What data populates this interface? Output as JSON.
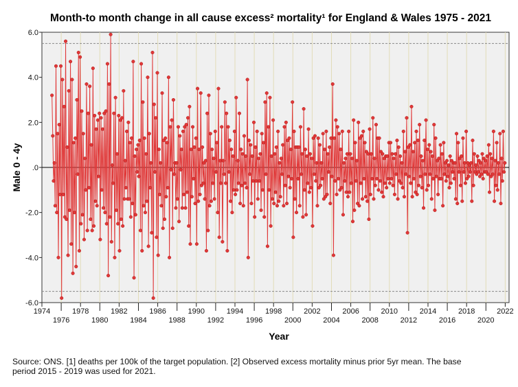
{
  "chart_data": {
    "type": "line",
    "title": "Month-to month change in all cause excess² mortality¹  for England & Wales 1975 - 2021",
    "xlabel": "Year",
    "ylabel": "Male 0 - 4y",
    "xlim": [
      1974,
      2022.4
    ],
    "ylim": [
      -6,
      6
    ],
    "x_ticks": [
      "1974",
      "1976",
      "1978",
      "1980",
      "1982",
      "1984",
      "1986",
      "1988",
      "1990",
      "1992",
      "1994",
      "1996",
      "1998",
      "2000",
      "2002",
      "2004",
      "2006",
      "2008",
      "2010",
      "2012",
      "2014",
      "2016",
      "2018",
      "2020",
      "2022"
    ],
    "y_ticks": [
      "6.0",
      "4.0",
      "2.0",
      ".0",
      "-2.0",
      "-4.0",
      "-6.0"
    ],
    "reference_lines": [
      5.5,
      -5.5,
      0
    ],
    "grid": "vertical",
    "series_color": "#e03838",
    "start_year": 1975,
    "monthly_values": [
      [
        3.2,
        1.4,
        -0.6,
        0.2,
        -1.7,
        4.5,
        -2.0,
        1.5,
        -4.0,
        1.9,
        -1.2,
        4.5
      ],
      [
        -5.8,
        3.9,
        -1.2,
        2.7,
        -2.2,
        5.6,
        -2.3,
        0.9,
        -3.9,
        3.4,
        -1.9,
        4.7
      ],
      [
        -3.4,
        3.9,
        -4.7,
        1.1,
        -2.0,
        1.3,
        -4.4,
        3.0,
        -0.3,
        5.1,
        -3.7,
        4.9
      ],
      [
        -2.5,
        2.5,
        -2.1,
        1.5,
        -3.2,
        0.4,
        -1.0,
        3.7,
        -2.8,
        2.4,
        -0.9,
        3.6
      ],
      [
        -2.3,
        1.0,
        -2.8,
        4.4,
        -2.6,
        2.3,
        -1.5,
        1.7,
        -1.7,
        2.1,
        -0.4,
        2.4
      ],
      [
        -3.2,
        2.2,
        -1.0,
        1.7,
        -1.8,
        2.4,
        -2.0,
        2.5,
        -2.5,
        4.6,
        -4.8,
        3.7
      ],
      [
        -2.2,
        5.9,
        -3.3,
        0.1,
        -0.7,
        2.4,
        -4.0,
        3.1,
        -1.9,
        0.6,
        -2.5,
        2.3
      ],
      [
        -3.7,
        2.1,
        -2.3,
        2.2,
        -2.6,
        3.4,
        -1.4,
        0.3,
        -0.9,
        1.6,
        -1.4,
        2.0
      ],
      [
        -1.4,
        1.1,
        -2.2,
        1.3,
        -1.6,
        4.7,
        -4.9,
        0.5,
        -2.1,
        0.8,
        -0.2,
        1.0
      ],
      [
        -0.4,
        1.2,
        -2.8,
        4.6,
        -3.7,
        2.9,
        -1.7,
        1.3,
        -2.0,
        0.6,
        -1.5,
        4.0
      ],
      [
        -3.5,
        1.5,
        -0.9,
        0.2,
        -2.9,
        5.1,
        -5.8,
        2.8,
        -0.2,
        2.2,
        -3.1,
        4.2
      ],
      [
        -3.9,
        0.8,
        -1.2,
        0.2,
        -1.7,
        3.3,
        -2.7,
        1.2,
        -2.3,
        1.3,
        -1.3,
        1.1
      ],
      [
        -0.9,
        4.0,
        -4.0,
        1.8,
        -0.1,
        2.1,
        -2.7,
        3.0,
        -0.3,
        0.2,
        -1.8,
        0.2
      ],
      [
        -1.4,
        1.8,
        -2.4,
        1.4,
        -0.1,
        0.8,
        -1.8,
        1.6,
        -1.2,
        1.8,
        -1.8,
        1.9
      ],
      [
        -1.1,
        2.2,
        -2.6,
        2.7,
        -3.4,
        0.8,
        -1.3,
        1.8,
        -0.5,
        0.9,
        -1.6,
        1.3
      ],
      [
        -3.4,
        3.5,
        -1.5,
        0.8,
        -1.2,
        3.3,
        -0.8,
        0.9,
        -0.7,
        0.2,
        -1.4,
        0.3
      ],
      [
        -3.7,
        2.4,
        -2.8,
        3.2,
        -1.7,
        1.5,
        -1.5,
        0.8,
        -0.7,
        0.4,
        -1.4,
        1.6
      ],
      [
        -0.2,
        1.1,
        -2.0,
        3.5,
        -3.1,
        0.3,
        -0.7,
        1.8,
        -3.3,
        0.3,
        -0.3,
        2.9
      ],
      [
        -0.7,
        2.4,
        -3.7,
        1.8,
        -0.2,
        1.2,
        -1.5,
        0.8,
        -2.0,
        0.5,
        -1.0,
        1.6
      ],
      [
        -1.2,
        3.1,
        -1.0,
        0.3,
        -0.7,
        2.4,
        -1.6,
        0.8,
        -0.8,
        0.6,
        -1.7,
        1.4
      ],
      [
        -0.7,
        0.5,
        -0.9,
        3.9,
        -4.0,
        1.2,
        -0.3,
        1.0,
        -1.6,
        0.5,
        -0.6,
        2.0
      ],
      [
        -2.2,
        0.9,
        -0.6,
        1.6,
        -1.4,
        0.4,
        -0.6,
        0.6,
        -1.9,
        1.5,
        -1.0,
        1.1
      ],
      [
        -2.2,
        2.9,
        -0.3,
        3.3,
        -3.5,
        1.8,
        -1.0,
        3.1,
        -2.6,
        0.5,
        -1.4,
        2.1
      ],
      [
        -1.6,
        0.6,
        -1.1,
        0.9,
        -1.7,
        1.6,
        -1.5,
        0.2,
        -1.3,
        0.4,
        -0.3,
        1.0
      ],
      [
        -1.7,
        1.8,
        -0.8,
        2.0,
        -1.6,
        1.2,
        -0.4,
        1.3,
        -0.9,
        0.8,
        -0.5,
        2.9
      ],
      [
        -3.1,
        1.6,
        -1.4,
        0.9,
        -2.0,
        0.9,
        -0.5,
        0.9,
        -1.7,
        1.8,
        -0.3,
        0.6
      ],
      [
        -2.2,
        2.6,
        -1.0,
        0.8,
        -2.1,
        0.5,
        -0.7,
        1.7,
        -1.1,
        0.6,
        -0.9,
        0.4
      ],
      [
        -2.6,
        1.3,
        -0.3,
        1.4,
        -0.6,
        0.2,
        -1.7,
        1.3,
        -0.9,
        1.0,
        -0.8,
        0.2
      ],
      [
        -0.5,
        1.5,
        -1.4,
        0.8,
        -1.3,
        1.6,
        -1.2,
        0.6,
        -0.2,
        0.9,
        -1.6,
        1.3
      ],
      [
        -0.4,
        3.7,
        -3.9,
        1.3,
        -0.6,
        2.1,
        -1.2,
        1.8,
        -0.5,
        1.5,
        -1.0,
        0.8
      ],
      [
        -0.9,
        1.6,
        -2.1,
        0.2,
        -0.6,
        0.4,
        -1.1,
        0.6,
        -1.3,
        1.6,
        -1.1,
        0.6
      ],
      [
        -0.7,
        0.4,
        -2.4,
        2.1,
        -1.9,
        1.1,
        -0.6,
        0.3,
        -1.6,
        2.0,
        -1.7,
        1.3
      ],
      [
        -0.7,
        1.4,
        -1.4,
        1.6,
        -0.5,
        1.1,
        -1.3,
        0.7,
        -1.5,
        0.6,
        -2.3,
        1.7
      ],
      [
        -1.2,
        0.6,
        -0.5,
        2.2,
        -1.4,
        0.4,
        -0.8,
        1.9,
        -0.5,
        1.3,
        -1.0,
        1.3
      ],
      [
        -0.6,
        0.7,
        -1.1,
        0.6,
        -1.3,
        0.4,
        -0.7,
        0.5,
        -0.9,
        0.5,
        -0.5,
        1.1
      ],
      [
        -0.7,
        1.1,
        -0.5,
        0.6,
        -0.8,
        0.4,
        -1.2,
        0.6,
        -0.3,
        1.2,
        -1.4,
        0.9
      ],
      [
        -0.6,
        0.5,
        -0.7,
        0.2,
        -0.9,
        1.6,
        -1.3,
        0.7,
        -0.3,
        2.2,
        -2.9,
        0.9
      ],
      [
        -0.4,
        1.0,
        -0.7,
        2.7,
        -1.3,
        0.7,
        -0.5,
        1.1,
        -1.1,
        1.6,
        -1.2,
        1.2
      ],
      [
        -0.8,
        1.9,
        -0.4,
        0.5,
        -0.9,
        0.3,
        -1.8,
        1.2,
        -0.3,
        2.1,
        -1.0,
        0.8
      ],
      [
        -0.8,
        1.0,
        -0.3,
        0.7,
        -1.4,
        0.5,
        -0.5,
        1.9,
        -1.9,
        1.3,
        -0.4,
        0.3
      ],
      [
        -1.2,
        0.4,
        -0.5,
        1.0,
        -0.5,
        0.6,
        -1.7,
        1.1,
        -0.3,
        0.2,
        -0.6,
        0.3
      ],
      [
        -0.4,
        0.1,
        -0.9,
        0.5,
        -0.7,
        0.3,
        -0.2,
        0.2,
        -0.5,
        0.2,
        -1.4,
        1.5
      ],
      [
        -1.6,
        1.1,
        -0.2,
        0.4,
        -0.8,
        0.5,
        -1.5,
        1.3,
        -0.2,
        0.2,
        -0.7,
        1.6
      ],
      [
        -0.5,
        0.2,
        -0.4,
        0.1,
        -0.2,
        0.2,
        -1.5,
        1.2,
        -0.8,
        0.6,
        -0.2,
        0.1
      ],
      [
        -0.3,
        0.5,
        -0.2,
        0.3,
        -0.4,
        0.2,
        -0.3,
        0.6,
        -0.5,
        0.4,
        -0.2,
        0.3
      ],
      [
        -0.2,
        0.5,
        -0.3,
        1.0,
        -1.1,
        0.6,
        -0.4,
        0.4,
        -0.3,
        1.6,
        -1.5,
        0.3
      ],
      [
        -0.8,
        1.1,
        -1.0,
        0.2,
        -0.3,
        1.5,
        -1.6,
        0.4,
        -0.6,
        1.6,
        -0.2,
        0.2
      ]
    ]
  },
  "footnote": {
    "line1": "Source: ONS. [1] deaths per 100k of the target population. [2] Observed excess mortality minus prior 5yr mean. The base",
    "line2": "period 2015 - 2019 was used for 2021."
  }
}
